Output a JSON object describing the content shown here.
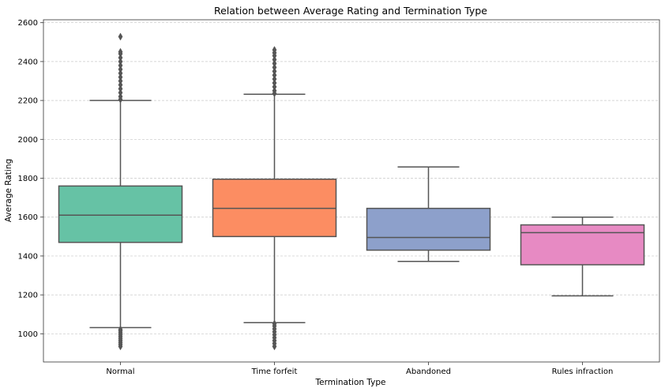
{
  "chart_data": {
    "type": "box",
    "title": "Relation between Average Rating and Termination Type",
    "xlabel": "Termination Type",
    "ylabel": "Average Rating",
    "ylim": [
      855,
      2615
    ],
    "yticks": [
      1000,
      1200,
      1400,
      1600,
      1800,
      2000,
      2200,
      2400,
      2600
    ],
    "grid": "horizontal, dashed",
    "categories": [
      "Normal",
      "Time forfeit",
      "Abandoned",
      "Rules infraction"
    ],
    "colors": [
      "#66c2a5",
      "#fc8d62",
      "#8da0cb",
      "#e78ac3"
    ],
    "boxes": [
      {
        "category": "Normal",
        "whisker_low": 1032,
        "q1": 1470,
        "median": 1610,
        "q3": 1760,
        "whisker_high": 2200,
        "outliers_high": [
          2205,
          2220,
          2240,
          2260,
          2280,
          2300,
          2320,
          2340,
          2360,
          2380,
          2400,
          2420,
          2440,
          2450,
          2528
        ],
        "outliers_low": [
          935,
          945,
          955,
          965,
          975,
          985,
          995,
          1005,
          1015,
          1022
        ]
      },
      {
        "category": "Time forfeit",
        "whisker_low": 1057,
        "q1": 1500,
        "median": 1645,
        "q3": 1795,
        "whisker_high": 2232,
        "outliers_high": [
          2236,
          2250,
          2270,
          2290,
          2310,
          2330,
          2350,
          2370,
          2390,
          2410,
          2430,
          2445,
          2460
        ],
        "outliers_low": [
          935,
          950,
          965,
          980,
          995,
          1010,
          1025,
          1040,
          1052
        ]
      },
      {
        "category": "Abandoned",
        "whisker_low": 1372,
        "q1": 1430,
        "median": 1495,
        "q3": 1645,
        "whisker_high": 1858,
        "outliers_high": [],
        "outliers_low": []
      },
      {
        "category": "Rules infraction",
        "whisker_low": 1195,
        "q1": 1355,
        "median": 1520,
        "q3": 1560,
        "whisker_high": 1600,
        "outliers_high": [],
        "outliers_low": []
      }
    ]
  }
}
